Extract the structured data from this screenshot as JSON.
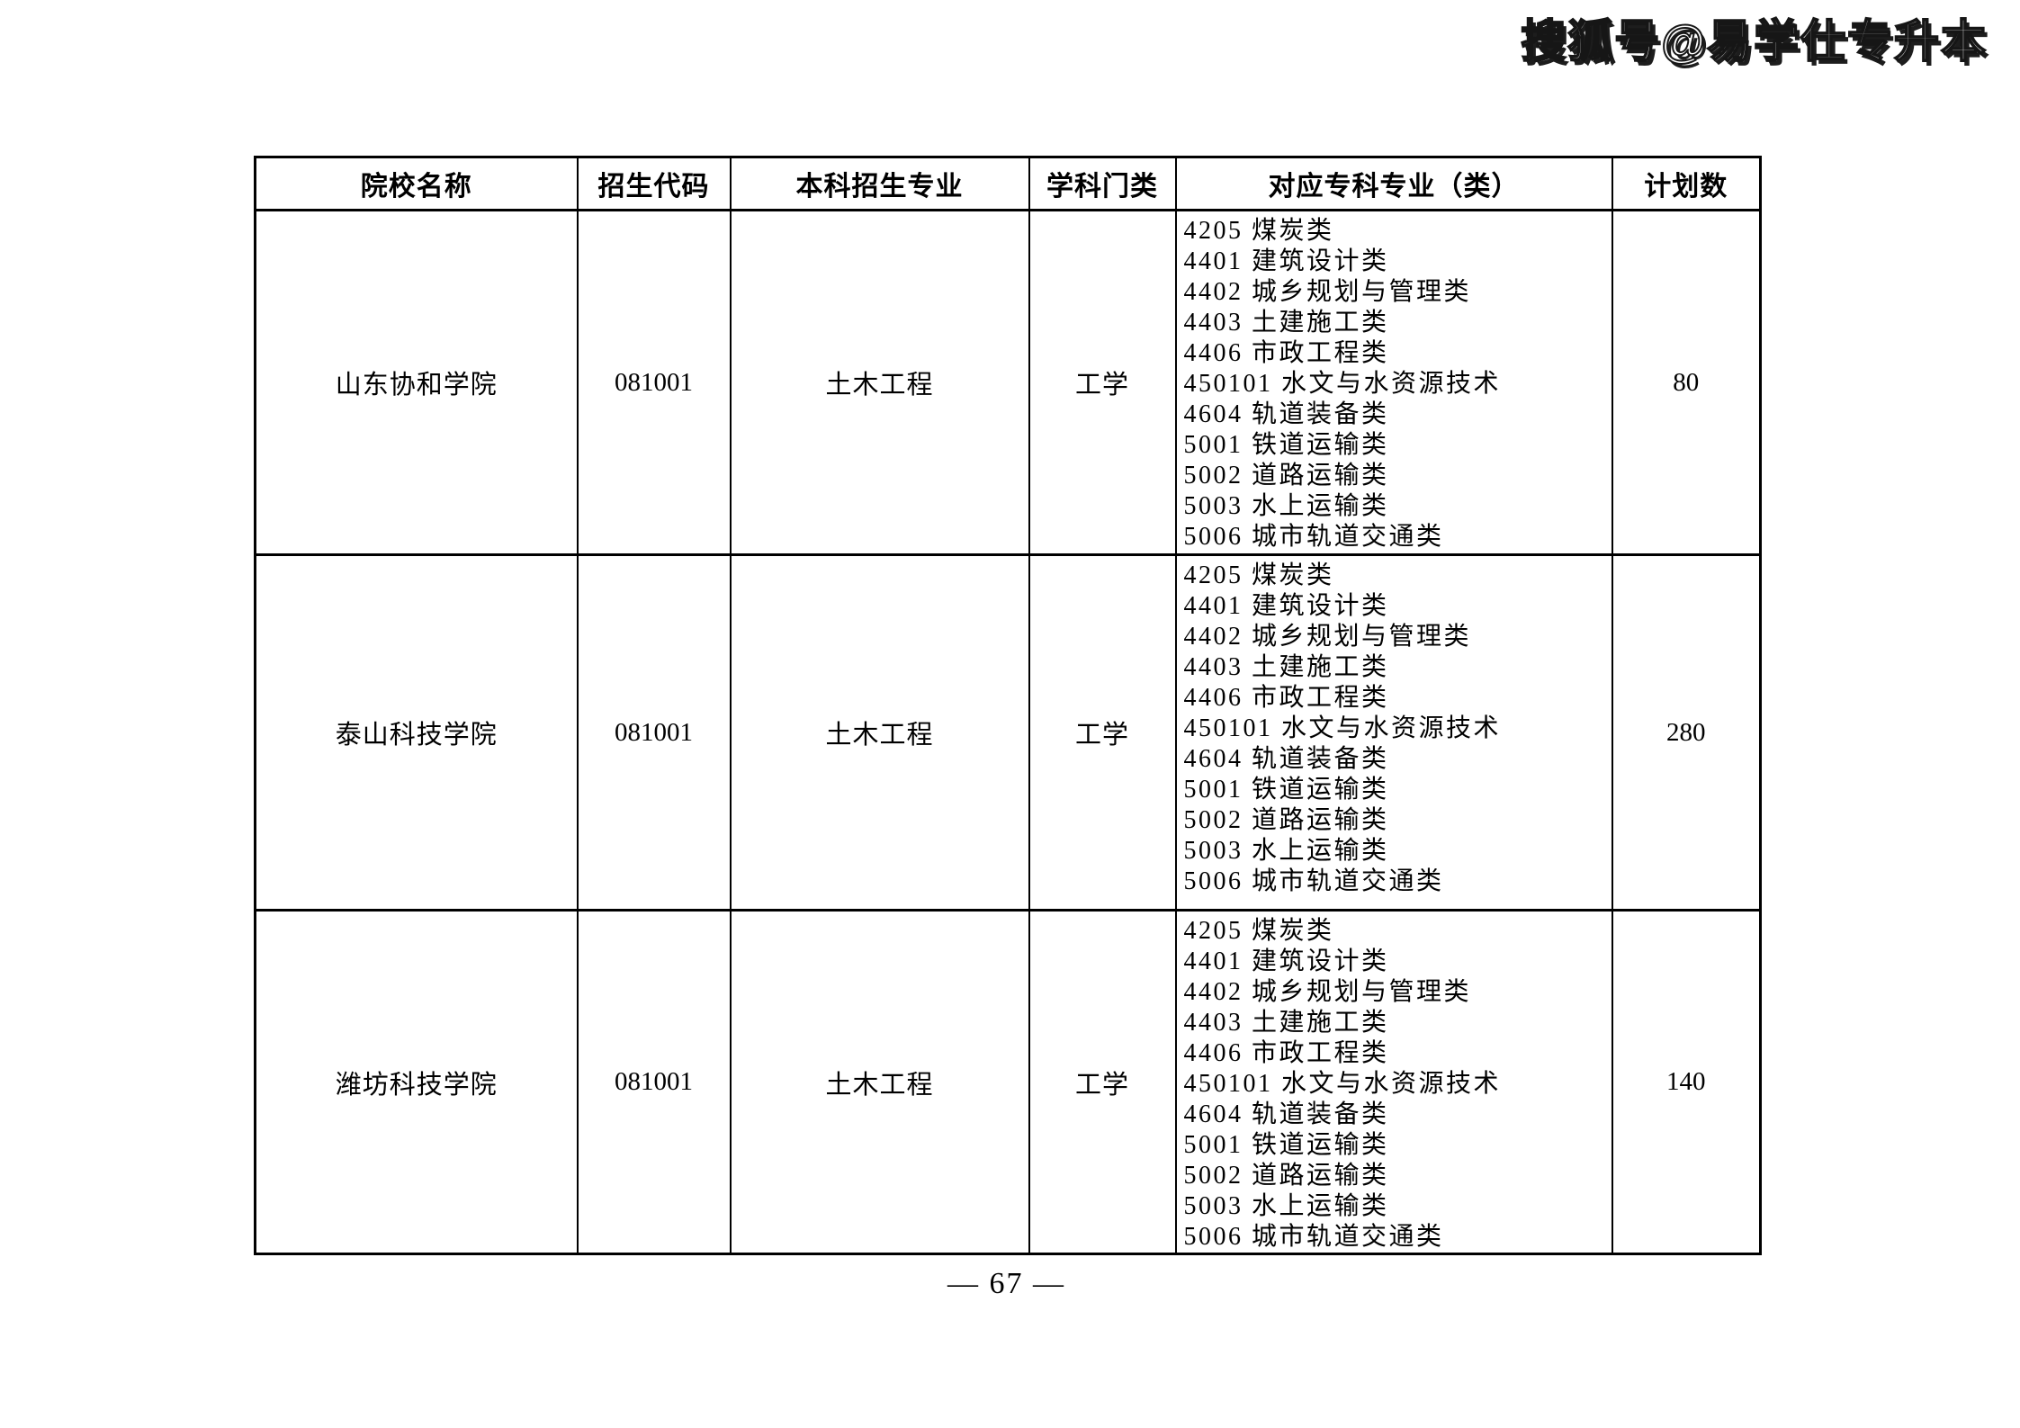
{
  "watermark": "搜狐号@易学仕专升本",
  "table": {
    "headers": [
      "院校名称",
      "招生代码",
      "本科招生专业",
      "学科门类",
      "对应专科专业（类）",
      "计划数"
    ],
    "rows": [
      {
        "school": "山东协和学院",
        "code": "081001",
        "major": "土木工程",
        "discipline": "工学",
        "majors_list": [
          "4205 煤炭类",
          "4401 建筑设计类",
          "4402 城乡规划与管理类",
          "4403 土建施工类",
          "4406 市政工程类",
          "450101 水文与水资源技术",
          "4604 轨道装备类",
          "5001 铁道运输类",
          "5002 道路运输类",
          "5003 水上运输类",
          "5006 城市轨道交通类"
        ],
        "plan": "80"
      },
      {
        "school": "泰山科技学院",
        "code": "081001",
        "major": "土木工程",
        "discipline": "工学",
        "majors_list": [
          "4205 煤炭类",
          "4401 建筑设计类",
          "4402 城乡规划与管理类",
          "4403 土建施工类",
          "4406 市政工程类",
          "450101 水文与水资源技术",
          "4604 轨道装备类",
          "5001 铁道运输类",
          "5002 道路运输类",
          "5003 水上运输类",
          "5006 城市轨道交通类"
        ],
        "plan": "280"
      },
      {
        "school": "潍坊科技学院",
        "code": "081001",
        "major": "土木工程",
        "discipline": "工学",
        "majors_list": [
          "4205 煤炭类",
          "4401 建筑设计类",
          "4402 城乡规划与管理类",
          "4403 土建施工类",
          "4406 市政工程类",
          "450101 水文与水资源技术",
          "4604 轨道装备类",
          "5001 铁道运输类",
          "5002 道路运输类",
          "5003 水上运输类",
          "5006 城市轨道交通类"
        ],
        "plan": "140"
      }
    ]
  },
  "page_number": "— 67 —"
}
